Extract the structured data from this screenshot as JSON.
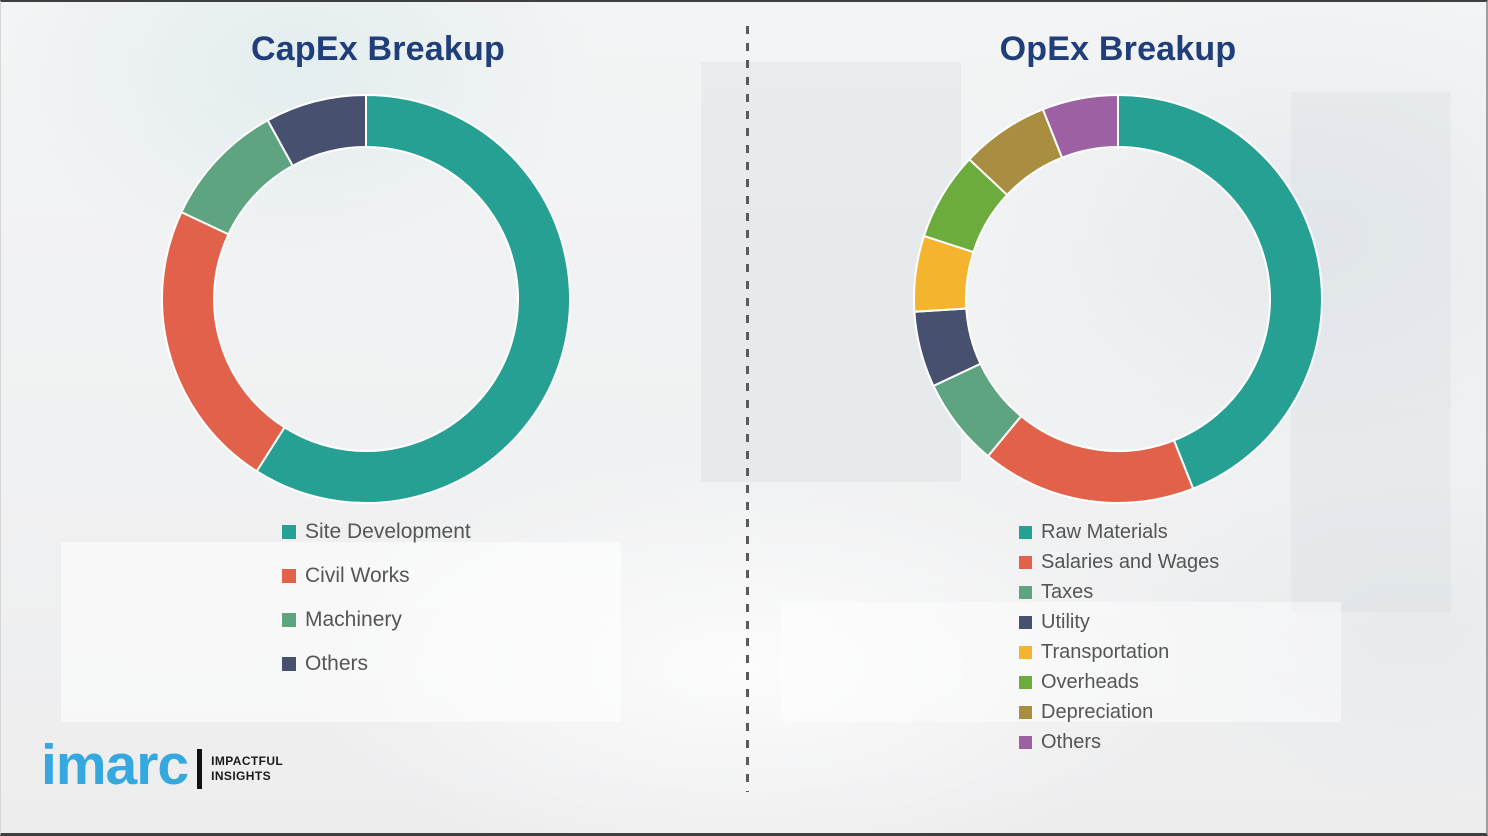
{
  "chart_data": [
    {
      "type": "pie",
      "subtype": "donut",
      "title": "CapEx Breakup",
      "categories": [
        "Site Development",
        "Civil Works",
        "Machinery",
        "Others"
      ],
      "values": [
        59,
        23,
        10,
        8
      ],
      "colors": [
        "#27A094",
        "#E2614A",
        "#5EA480",
        "#47506E"
      ],
      "start_angle_deg": 0,
      "direction": "clockwise",
      "legend_position": "below-left",
      "data_labels": false
    },
    {
      "type": "pie",
      "subtype": "donut",
      "title": "OpEx Breakup",
      "categories": [
        "Raw Materials",
        "Salaries and Wages",
        "Taxes",
        "Utility",
        "Transportation",
        "Overheads",
        "Depreciation",
        "Others"
      ],
      "values": [
        44,
        17,
        7,
        6,
        6,
        7,
        7,
        6
      ],
      "colors": [
        "#27A094",
        "#E2614A",
        "#5EA480",
        "#47506E",
        "#F4B42D",
        "#6BAC3C",
        "#A98E41",
        "#9D61A3"
      ],
      "start_angle_deg": 0,
      "direction": "clockwise",
      "legend_position": "below-left",
      "data_labels": false
    }
  ],
  "titles": {
    "capex": "CapEx Breakup",
    "opex": "OpEx Breakup"
  },
  "branding": {
    "logo_text": "imarc",
    "tagline_line1": "IMPACTFUL",
    "tagline_line2": "INSIGHTS",
    "logo_color": "#35A8E0"
  },
  "style_colors": {
    "title_navy": "#1F3E7A",
    "legend_text": "#555555",
    "divider_gray": "#5A5A5A",
    "background": "#F0F1F2"
  }
}
